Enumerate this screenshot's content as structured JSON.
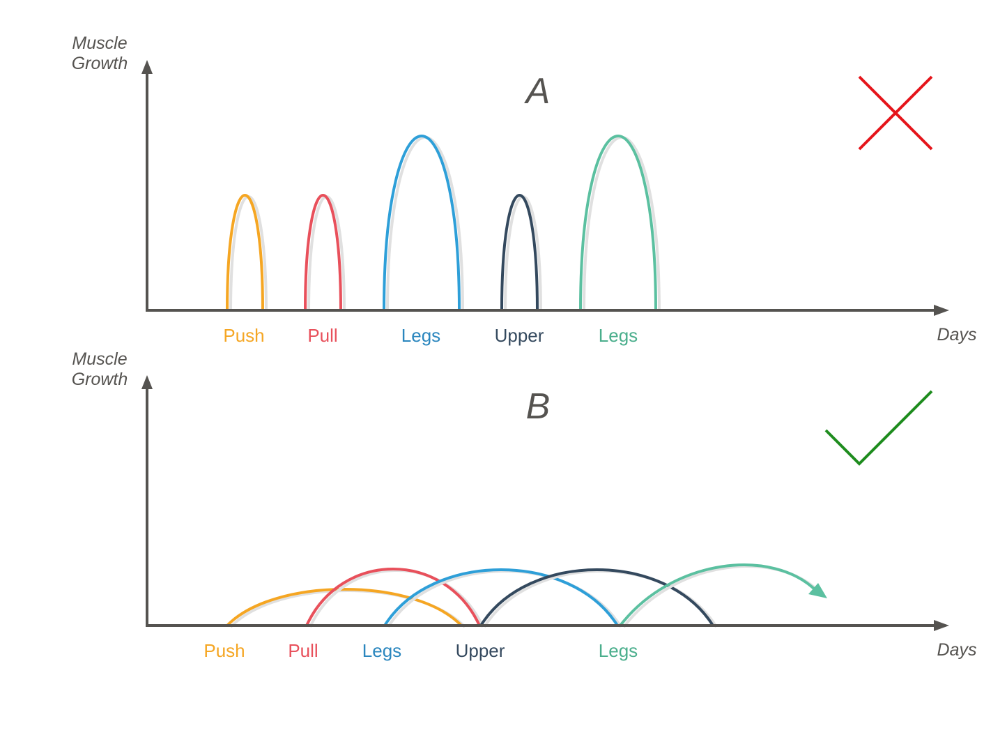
{
  "colors": {
    "axis": "#555350",
    "push": "#F5A623",
    "pull": "#E8505B",
    "legs": "#2E9FD8",
    "upper": "#34495E",
    "legs2": "#5BC0A0",
    "legs2_text": "#4AAE8C",
    "legs_text": "#2A86BE",
    "cross": "#E5141A",
    "check": "#1E8C1E",
    "shadow": "#E0E0E0"
  },
  "panel_a": {
    "title": "A",
    "y_label_line1": "Muscle",
    "y_label_line2": "Growth",
    "x_label": "Days",
    "verdict_icon": "cross-icon",
    "labels": [
      "Push",
      "Pull",
      "Legs",
      "Upper",
      "Legs"
    ]
  },
  "panel_b": {
    "title": "B",
    "y_label_line1": "Muscle",
    "y_label_line2": "Growth",
    "x_label": "Days",
    "verdict_icon": "check-icon",
    "labels": [
      "Push",
      "Pull",
      "Legs",
      "Upper",
      "Legs"
    ]
  }
}
